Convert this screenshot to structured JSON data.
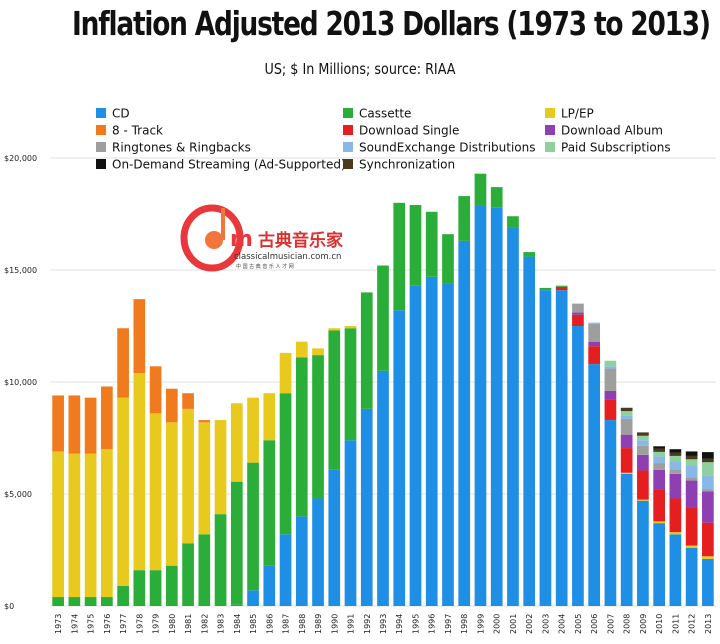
{
  "title": "Inflation Adjusted 2013 Dollars (1973 to 2013)",
  "subtitle": "US; $ In Millions; source: RIAA",
  "watermark": {
    "brand": "古典音乐家",
    "url": "classicalmusician.com.cn",
    "tagline": "中 国 古 典 音 乐 人 才 网",
    "colors": {
      "red": "#e8282b",
      "orange": "#f26a2b"
    }
  },
  "chart_data": {
    "type": "bar",
    "stacked": true,
    "ylim": [
      0,
      20000
    ],
    "yticks": [
      {
        "value": 0,
        "label": "$0"
      },
      {
        "value": 5000,
        "label": "$5,000"
      },
      {
        "value": 10000,
        "label": "$10,000"
      },
      {
        "value": 15000,
        "label": "$15,000"
      },
      {
        "value": 20000,
        "label": "$20,000"
      }
    ],
    "grid": true,
    "legend_position": "top",
    "categories": [
      "1973",
      "1974",
      "1975",
      "1976",
      "1977",
      "1978",
      "1979",
      "1980",
      "1981",
      "1982",
      "1983",
      "1984",
      "1985",
      "1986",
      "1987",
      "1988",
      "1989",
      "1990",
      "1991",
      "1992",
      "1993",
      "1994",
      "1995",
      "1996",
      "1997",
      "1998",
      "1999",
      "2000",
      "2001",
      "2002",
      "2003",
      "2004",
      "2005",
      "2006",
      "2007",
      "2008",
      "2009",
      "2010",
      "2011",
      "2012",
      "2013"
    ],
    "series": [
      {
        "name": "CD",
        "color": "#1f8fe6",
        "values": [
          0,
          0,
          0,
          0,
          0,
          0,
          0,
          0,
          0,
          0,
          0,
          50,
          700,
          1800,
          3200,
          4000,
          4800,
          6100,
          7400,
          8800,
          10500,
          13200,
          14300,
          14700,
          14400,
          16300,
          17900,
          17800,
          16900,
          15600,
          14100,
          14100,
          12500,
          10800,
          8300,
          5900,
          4700,
          3700,
          3200,
          2600,
          2100
        ]
      },
      {
        "name": "8 - Track",
        "color": "#f07b1e",
        "values": [
          2500,
          2600,
          2500,
          2800,
          3100,
          3300,
          2100,
          1500,
          700,
          100,
          0,
          0,
          0,
          0,
          0,
          0,
          0,
          0,
          0,
          0,
          0,
          0,
          0,
          0,
          0,
          0,
          0,
          0,
          0,
          0,
          0,
          0,
          0,
          0,
          0,
          0,
          0,
          0,
          0,
          0,
          0
        ]
      },
      {
        "name": "LP/EP",
        "color": "#e8c91e",
        "values": [
          6500,
          6400,
          6400,
          6600,
          8400,
          8800,
          7000,
          6400,
          6000,
          5000,
          4200,
          3500,
          2900,
          2100,
          1800,
          700,
          300,
          100,
          100,
          0,
          0,
          0,
          0,
          0,
          0,
          0,
          0,
          0,
          0,
          0,
          0,
          0,
          0,
          0,
          0,
          50,
          50,
          80,
          100,
          100,
          120
        ]
      },
      {
        "name": "Cassette",
        "color": "#2bad39",
        "values": [
          400,
          400,
          400,
          400,
          900,
          1600,
          1600,
          1800,
          2800,
          3200,
          4100,
          5500,
          5700,
          5600,
          6300,
          7100,
          6400,
          6200,
          5000,
          5200,
          4700,
          4800,
          3600,
          2900,
          2200,
          2000,
          1400,
          900,
          500,
          200,
          100,
          50,
          0,
          0,
          0,
          0,
          0,
          0,
          0,
          0,
          0
        ]
      },
      {
        "name": "Download Single",
        "color": "#e51f1f",
        "values": [
          0,
          0,
          0,
          0,
          0,
          0,
          0,
          0,
          0,
          0,
          0,
          0,
          0,
          0,
          0,
          0,
          0,
          0,
          0,
          0,
          0,
          0,
          0,
          0,
          0,
          0,
          0,
          0,
          0,
          0,
          0,
          150,
          500,
          800,
          900,
          1100,
          1300,
          1400,
          1500,
          1700,
          1500
        ]
      },
      {
        "name": "Download Album",
        "color": "#8e3fb2",
        "values": [
          0,
          0,
          0,
          0,
          0,
          0,
          0,
          0,
          0,
          0,
          0,
          0,
          0,
          0,
          0,
          0,
          0,
          0,
          0,
          0,
          0,
          0,
          0,
          0,
          0,
          0,
          0,
          0,
          0,
          0,
          0,
          0,
          100,
          200,
          400,
          600,
          700,
          900,
          1100,
          1200,
          1400
        ]
      },
      {
        "name": "Ringtones & Ringbacks",
        "color": "#9e9e9e",
        "values": [
          0,
          0,
          0,
          0,
          0,
          0,
          0,
          0,
          0,
          0,
          0,
          0,
          0,
          0,
          0,
          0,
          0,
          0,
          0,
          0,
          0,
          0,
          0,
          0,
          0,
          0,
          0,
          0,
          0,
          0,
          0,
          0,
          400,
          800,
          1000,
          700,
          400,
          300,
          200,
          150,
          100
        ]
      },
      {
        "name": "SoundExchange Distributions",
        "color": "#8ab8e6",
        "values": [
          0,
          0,
          0,
          0,
          0,
          0,
          0,
          0,
          0,
          0,
          0,
          0,
          0,
          0,
          0,
          0,
          0,
          0,
          0,
          0,
          0,
          0,
          0,
          0,
          0,
          0,
          0,
          0,
          0,
          0,
          0,
          0,
          0,
          50,
          100,
          150,
          250,
          300,
          350,
          500,
          600
        ]
      },
      {
        "name": "Paid Subscriptions",
        "color": "#8fd19e",
        "values": [
          0,
          0,
          0,
          0,
          0,
          0,
          0,
          0,
          0,
          0,
          0,
          0,
          0,
          0,
          0,
          0,
          0,
          0,
          0,
          0,
          0,
          0,
          0,
          0,
          0,
          0,
          0,
          0,
          0,
          0,
          0,
          0,
          0,
          0,
          250,
          200,
          200,
          200,
          250,
          300,
          600
        ]
      },
      {
        "name": "On-Demand Streaming (Ad-Supported)",
        "color": "#111111",
        "values": [
          0,
          0,
          0,
          0,
          0,
          0,
          0,
          0,
          0,
          0,
          0,
          0,
          0,
          0,
          0,
          0,
          0,
          0,
          0,
          0,
          0,
          0,
          0,
          0,
          0,
          0,
          0,
          0,
          0,
          0,
          0,
          0,
          0,
          0,
          0,
          0,
          0,
          100,
          150,
          200,
          300
        ]
      },
      {
        "name": "Synchronization",
        "color": "#4a3a1e",
        "values": [
          0,
          0,
          0,
          0,
          0,
          0,
          0,
          0,
          0,
          0,
          0,
          0,
          0,
          0,
          0,
          0,
          0,
          0,
          0,
          0,
          0,
          0,
          0,
          0,
          0,
          0,
          0,
          0,
          0,
          0,
          0,
          0,
          0,
          0,
          0,
          150,
          150,
          150,
          150,
          150,
          150
        ]
      }
    ],
    "legend_order": [
      "CD",
      "Cassette",
      "LP/EP",
      "8 - Track",
      "Download Single",
      "Download Album",
      "Ringtones & Ringbacks",
      "SoundExchange Distributions",
      "Paid Subscriptions",
      "On-Demand Streaming (Ad-Supported)",
      "Synchronization"
    ]
  }
}
